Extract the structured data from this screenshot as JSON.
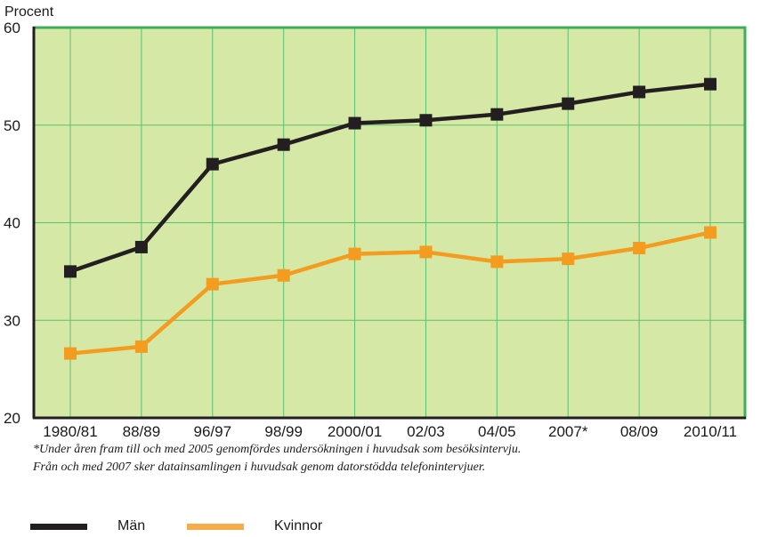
{
  "chart_data": {
    "type": "line",
    "ylabel": "Procent",
    "categories": [
      "1980/81",
      "88/89",
      "96/97",
      "98/99",
      "2000/01",
      "02/03",
      "04/05",
      "2007*",
      "08/09",
      "2010/11"
    ],
    "ylim": [
      20,
      60
    ],
    "yticks": [
      20,
      30,
      40,
      50,
      60
    ],
    "grid": true,
    "plot_background": "#d6e8a5",
    "grid_color": "#5cbf6e",
    "series": [
      {
        "name": "Män",
        "color": "#231f20",
        "values": [
          35.0,
          37.5,
          46.0,
          48.0,
          50.2,
          50.5,
          51.1,
          52.2,
          53.4,
          54.2
        ]
      },
      {
        "name": "Kvinnor",
        "color": "#f39c1f",
        "values": [
          26.6,
          27.3,
          33.7,
          34.6,
          36.8,
          37.0,
          36.0,
          36.3,
          37.4,
          39.0
        ]
      }
    ]
  },
  "footnotes": [
    "*Under åren fram till och med 2005 genomfördes undersökningen i huvudsak som besöksintervju.",
    "Från och med 2007 sker datainsamlingen i huvudsak genom datorstödda telefonintervjuer."
  ],
  "legend": {
    "items": [
      {
        "label": "Män",
        "color": "#231f20"
      },
      {
        "label": "Kvinnor",
        "color": "#f7ab4a"
      }
    ]
  }
}
